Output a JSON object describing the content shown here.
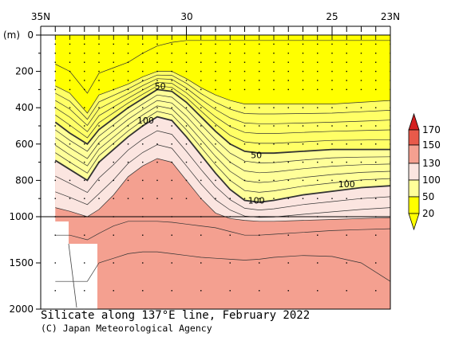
{
  "caption": {
    "title": "Silicate along 137°E line, February 2022",
    "credit": "(C) Japan Meteorological Agency"
  },
  "chart_data": {
    "type": "heatmap",
    "title": "Silicate along 137°E line, February 2022",
    "x_axis": {
      "quantity": "latitude",
      "range": [
        35,
        23
      ],
      "tick_labels": [
        "35N",
        "30",
        "25",
        "23N"
      ],
      "tick_values": [
        35,
        30,
        25,
        23
      ]
    },
    "y_axis": {
      "label": "(m)",
      "range": [
        0,
        2000
      ],
      "tick_values": [
        0,
        200,
        400,
        600,
        800,
        1000,
        1500,
        2000
      ],
      "tick_labels": [
        "0",
        "200",
        "400",
        "600",
        "800",
        "1000",
        "1500",
        "2000"
      ],
      "scale_note": "upper panel 0-1000 m, lower panel 1000-2000 m (compressed)"
    },
    "colorbar": {
      "levels": [
        20,
        50,
        100,
        130,
        150,
        170
      ],
      "labels": [
        "20",
        "50",
        "100",
        "130",
        "150",
        "170"
      ],
      "colors": [
        "#ffff00",
        "#ffff99",
        "#fbe5e0",
        "#f4a090",
        "#e85a4a",
        "#d42020"
      ]
    },
    "contour_labels": [
      {
        "text": "50",
        "lat": 30.9,
        "depth": 280
      },
      {
        "text": "100",
        "lat": 31.4,
        "depth": 470
      },
      {
        "text": "50",
        "lat": 27.6,
        "depth": 660
      },
      {
        "text": "100",
        "lat": 27.6,
        "depth": 910
      },
      {
        "text": "100",
        "lat": 24.5,
        "depth": 820
      }
    ],
    "stations_lat": [
      34.5,
      34,
      33.5,
      33,
      32.5,
      32,
      31.5,
      31,
      30.5,
      30,
      29.5,
      29,
      28.5,
      28,
      27.5,
      27,
      26.5,
      26,
      25.5,
      25,
      24.5,
      24,
      23.5,
      23
    ],
    "contour_depths": {
      "lat": [
        34.5,
        34,
        33.4,
        33,
        32.5,
        32,
        31.5,
        31,
        30.5,
        30,
        29.5,
        29,
        28.5,
        28,
        27.5,
        27,
        26,
        25,
        24,
        23
      ],
      "c20_top": [
        160,
        200,
        320,
        210,
        180,
        150,
        100,
        60,
        40,
        30,
        30,
        30,
        30,
        30,
        30,
        30,
        30,
        30,
        30,
        30
      ],
      "c20": [
        280,
        320,
        430,
        330,
        300,
        270,
        230,
        200,
        200,
        240,
        290,
        330,
        360,
        380,
        380,
        380,
        380,
        380,
        370,
        360
      ],
      "c50": [
        480,
        540,
        600,
        520,
        460,
        400,
        350,
        300,
        310,
        370,
        450,
        530,
        600,
        640,
        650,
        650,
        640,
        630,
        630,
        630
      ],
      "c100": [
        690,
        740,
        800,
        700,
        630,
        560,
        500,
        450,
        470,
        560,
        660,
        760,
        850,
        910,
        920,
        910,
        880,
        860,
        840,
        830
      ],
      "c130_top": [
        950,
        970,
        1000,
        960,
        880,
        780,
        720,
        680,
        700,
        800,
        900,
        980,
        1020,
        1040,
        1050,
        1050,
        1040,
        1030,
        1020,
        1010
      ]
    }
  }
}
